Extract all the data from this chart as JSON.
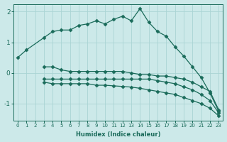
{
  "xlabel": "Humidex (Indice chaleur)",
  "ylabel": "",
  "bg_color": "#cce9e9",
  "grid_color": "#aad4d4",
  "line_color": "#1a6b5a",
  "xlim": [
    -0.5,
    23.5
  ],
  "ylim": [
    -1.55,
    2.25
  ],
  "yticks": [
    -1,
    0,
    1,
    2
  ],
  "xtick_labels": [
    "0",
    "1",
    "2",
    "3",
    "4",
    "5",
    "6",
    "7",
    "8",
    "9",
    "10",
    "11",
    "12",
    "13",
    "14",
    "15",
    "16",
    "17",
    "18",
    "19",
    "20",
    "21",
    "22",
    "23"
  ],
  "xticks": [
    0,
    1,
    2,
    3,
    4,
    5,
    6,
    7,
    8,
    9,
    10,
    11,
    12,
    13,
    14,
    15,
    16,
    17,
    18,
    19,
    20,
    21,
    22,
    23
  ],
  "series": [
    {
      "x": [
        0,
        1,
        3,
        4,
        5,
        6,
        7,
        8,
        9,
        10,
        11,
        12,
        13,
        14,
        15,
        16,
        17,
        18,
        19,
        20,
        21,
        22,
        23
      ],
      "y": [
        0.5,
        0.75,
        1.15,
        1.35,
        1.4,
        1.4,
        1.55,
        1.6,
        1.7,
        1.6,
        1.75,
        1.85,
        1.7,
        2.1,
        1.65,
        1.35,
        1.2,
        0.85,
        0.55,
        0.2,
        -0.15,
        -0.65,
        -1.25
      ]
    },
    {
      "x": [
        3,
        4,
        5,
        6,
        7,
        8,
        9,
        10,
        11,
        12,
        13,
        14,
        15,
        16,
        17,
        18,
        19,
        20,
        21,
        22,
        23
      ],
      "y": [
        0.2,
        0.2,
        0.1,
        0.05,
        0.05,
        0.05,
        0.05,
        0.05,
        0.05,
        0.05,
        0.0,
        -0.05,
        -0.05,
        -0.1,
        -0.1,
        -0.15,
        -0.2,
        -0.3,
        -0.45,
        -0.6,
        -1.2
      ]
    },
    {
      "x": [
        3,
        4,
        5,
        6,
        7,
        8,
        9,
        10,
        11,
        12,
        13,
        14,
        15,
        16,
        17,
        18,
        19,
        20,
        21,
        22,
        23
      ],
      "y": [
        -0.2,
        -0.2,
        -0.2,
        -0.2,
        -0.2,
        -0.2,
        -0.2,
        -0.2,
        -0.2,
        -0.2,
        -0.2,
        -0.2,
        -0.2,
        -0.25,
        -0.3,
        -0.35,
        -0.45,
        -0.55,
        -0.7,
        -0.9,
        -1.3
      ]
    },
    {
      "x": [
        3,
        4,
        5,
        6,
        7,
        8,
        9,
        10,
        11,
        12,
        13,
        14,
        15,
        16,
        17,
        18,
        19,
        20,
        21,
        22,
        23
      ],
      "y": [
        -0.3,
        -0.35,
        -0.35,
        -0.35,
        -0.35,
        -0.35,
        -0.4,
        -0.4,
        -0.42,
        -0.44,
        -0.46,
        -0.5,
        -0.55,
        -0.6,
        -0.65,
        -0.7,
        -0.8,
        -0.9,
        -1.0,
        -1.15,
        -1.4
      ]
    }
  ]
}
